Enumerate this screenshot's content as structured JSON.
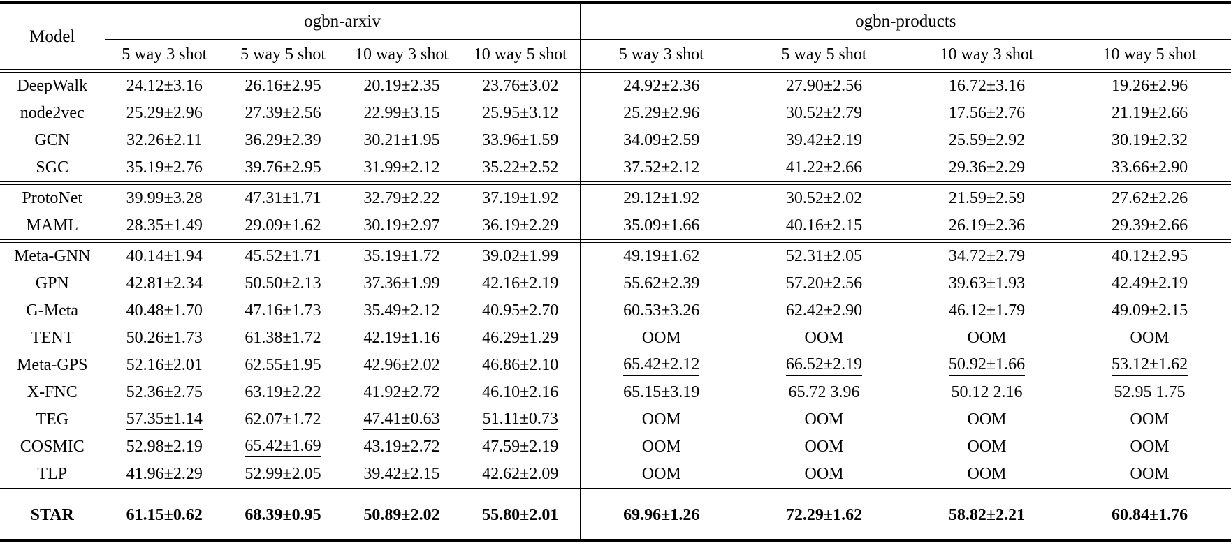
{
  "table": {
    "model_header": "Model",
    "groups": [
      {
        "label": "ogbn-arxiv",
        "subheaders": [
          "5 way 3 shot",
          "5 way 5 shot",
          "10 way 3 shot",
          "10 way 5 shot"
        ]
      },
      {
        "label": "ogbn-products",
        "subheaders": [
          "5 way 3 shot",
          "5 way 5 shot",
          "10 way 3 shot",
          "10 way 5 shot"
        ]
      }
    ],
    "sections": [
      {
        "name": "shallow-and-gnn-baselines",
        "bold": false,
        "rows": [
          {
            "model": "DeepWalk",
            "values": [
              "24.12±3.16",
              "26.16±2.95",
              "20.19±2.35",
              "23.76±3.02",
              "24.92±2.36",
              "27.90±2.56",
              "16.72±3.16",
              "19.26±2.96"
            ],
            "underline": []
          },
          {
            "model": "node2vec",
            "values": [
              "25.29±2.96",
              "27.39±2.56",
              "22.99±3.15",
              "25.95±3.12",
              "25.29±2.96",
              "30.52±2.79",
              "17.56±2.76",
              "21.19±2.66"
            ],
            "underline": []
          },
          {
            "model": "GCN",
            "values": [
              "32.26±2.11",
              "36.29±2.39",
              "30.21±1.95",
              "33.96±1.59",
              "34.09±2.59",
              "39.42±2.19",
              "25.59±2.92",
              "30.19±2.32"
            ],
            "underline": []
          },
          {
            "model": "SGC",
            "values": [
              "35.19±2.76",
              "39.76±2.95",
              "31.99±2.12",
              "35.22±2.52",
              "37.52±2.12",
              "41.22±2.66",
              "29.36±2.29",
              "33.66±2.90"
            ],
            "underline": []
          }
        ]
      },
      {
        "name": "meta-learning-baselines",
        "bold": false,
        "rows": [
          {
            "model": "ProtoNet",
            "values": [
              "39.99±3.28",
              "47.31±1.71",
              "32.79±2.22",
              "37.19±1.92",
              "29.12±1.92",
              "30.52±2.02",
              "21.59±2.59",
              "27.62±2.26"
            ],
            "underline": []
          },
          {
            "model": "MAML",
            "values": [
              "28.35±1.49",
              "29.09±1.62",
              "30.19±2.97",
              "36.19±2.29",
              "35.09±1.66",
              "40.16±2.15",
              "26.19±2.36",
              "29.39±2.66"
            ],
            "underline": []
          }
        ]
      },
      {
        "name": "graph-meta-learning-baselines",
        "bold": false,
        "rows": [
          {
            "model": "Meta-GNN",
            "values": [
              "40.14±1.94",
              "45.52±1.71",
              "35.19±1.72",
              "39.02±1.99",
              "49.19±1.62",
              "52.31±2.05",
              "34.72±2.79",
              "40.12±2.95"
            ],
            "underline": []
          },
          {
            "model": "GPN",
            "values": [
              "42.81±2.34",
              "50.50±2.13",
              "37.36±1.99",
              "42.16±2.19",
              "55.62±2.39",
              "57.20±2.56",
              "39.63±1.93",
              "42.49±2.19"
            ],
            "underline": []
          },
          {
            "model": "G-Meta",
            "values": [
              "40.48±1.70",
              "47.16±1.73",
              "35.49±2.12",
              "40.95±2.70",
              "60.53±3.26",
              "62.42±2.90",
              "46.12±1.79",
              "49.09±2.15"
            ],
            "underline": []
          },
          {
            "model": "TENT",
            "values": [
              "50.26±1.73",
              "61.38±1.72",
              "42.19±1.16",
              "46.29±1.29",
              "OOM",
              "OOM",
              "OOM",
              "OOM"
            ],
            "underline": []
          },
          {
            "model": "Meta-GPS",
            "values": [
              "52.16±2.01",
              "62.55±1.95",
              "42.96±2.02",
              "46.86±2.10",
              "65.42±2.12",
              "66.52±2.19",
              "50.92±1.66",
              "53.12±1.62"
            ],
            "underline": [
              4,
              5,
              6,
              7
            ]
          },
          {
            "model": "X-FNC",
            "values": [
              "52.36±2.75",
              "63.19±2.22",
              "41.92±2.72",
              "46.10±2.16",
              "65.15±3.19",
              "65.72 3.96",
              "50.12 2.16",
              "52.95 1.75"
            ],
            "underline": []
          },
          {
            "model": "TEG",
            "values": [
              "57.35±1.14",
              "62.07±1.72",
              "47.41±0.63",
              "51.11±0.73",
              "OOM",
              "OOM",
              "OOM",
              "OOM"
            ],
            "underline": [
              0,
              2,
              3
            ]
          },
          {
            "model": "COSMIC",
            "values": [
              "52.98±2.19",
              "65.42±1.69",
              "43.19±2.72",
              "47.59±2.19",
              "OOM",
              "OOM",
              "OOM",
              "OOM"
            ],
            "underline": [
              1
            ]
          },
          {
            "model": "TLP",
            "values": [
              "41.96±2.29",
              "52.99±2.05",
              "39.42±2.15",
              "42.62±2.09",
              "OOM",
              "OOM",
              "OOM",
              "OOM"
            ],
            "underline": []
          }
        ]
      },
      {
        "name": "ours",
        "bold": true,
        "rows": [
          {
            "model": "STAR",
            "values": [
              "61.15±0.62",
              "68.39±0.95",
              "50.89±2.02",
              "55.80±2.01",
              "69.96±1.26",
              "72.29±1.62",
              "58.82±2.21",
              "60.84±1.76"
            ],
            "underline": []
          }
        ]
      }
    ]
  },
  "colors": {
    "rule": "#000000",
    "text": "#000000",
    "background": "#ffffff"
  }
}
